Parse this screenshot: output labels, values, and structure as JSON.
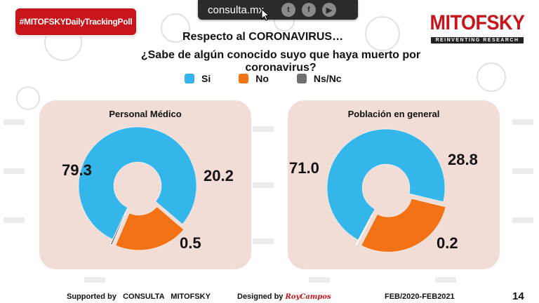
{
  "header": {
    "hashtag": "#MITOFSKYDailyTrackingPoll",
    "site": "consulta.mx",
    "social_icons": [
      "twitter-icon",
      "facebook-icon",
      "youtube-icon"
    ],
    "logo_name": "MITOFSKY",
    "logo_tagline": "REINVENTING RESEARCH"
  },
  "title": "Respecto al CORONAVIRUS…",
  "question": "¿Sabe de algún conocido suyo que haya muerto por coronavirus?",
  "legend": [
    {
      "label": "Si",
      "color": "#35b6ea"
    },
    {
      "label": "No",
      "color": "#f47216"
    },
    {
      "label": "Ns/Nc",
      "color": "#6f6f6f"
    }
  ],
  "chart_data": [
    {
      "type": "pie",
      "title": "Personal Médico",
      "categories": [
        "Si",
        "No",
        "Ns/Nc"
      ],
      "values": [
        79.3,
        20.2,
        0.5
      ],
      "labels": [
        "79.3",
        "20.2",
        "0.5"
      ],
      "colors": [
        "#35b6ea",
        "#f47216",
        "#6f6f6f"
      ]
    },
    {
      "type": "pie",
      "title": "Población en general",
      "categories": [
        "Si",
        "No",
        "Ns/Nc"
      ],
      "values": [
        71.0,
        28.8,
        0.2
      ],
      "labels": [
        "71.0",
        "28.8",
        "0.2"
      ],
      "colors": [
        "#35b6ea",
        "#f47216",
        "#6f6f6f"
      ]
    }
  ],
  "footer": {
    "supported_label": "Supported by",
    "supported_names": "CONSULTA   MITOFSKY",
    "designed_label": "Designed by",
    "designer": "RoyCampos",
    "date_range": "FEB/2020-FEB2021",
    "page_number": "14"
  }
}
